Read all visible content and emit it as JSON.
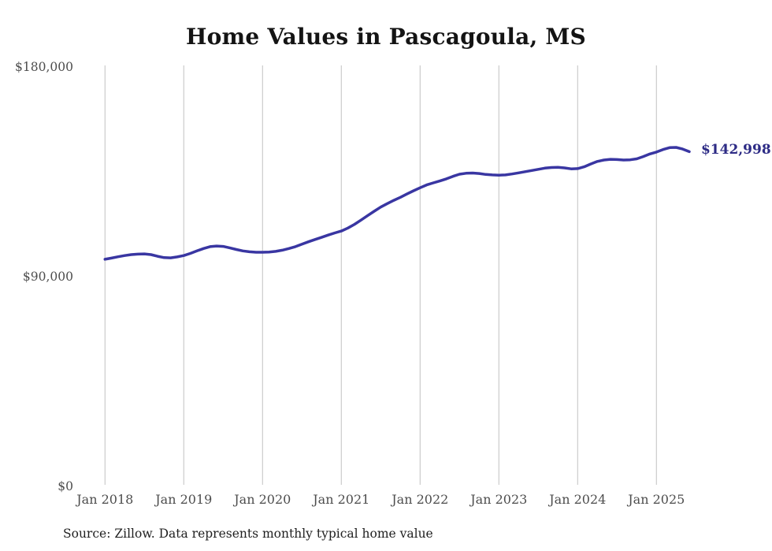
{
  "title": "Home Values in Pascagoula, MS",
  "source_note": "Source: Zillow. Data represents monthly typical home value",
  "colors": {
    "line": "#3936a2",
    "end_label": "#2d2b85",
    "gridline": "#cbcbcb",
    "axis_text": "#4d4d4d",
    "title_text": "#141414"
  },
  "chart_data": {
    "type": "line",
    "title": "Home Values in Pascagoula, MS",
    "series_name": "Monthly typical home value",
    "x_unit": "month",
    "months": [
      "2018-01",
      "2018-02",
      "2018-03",
      "2018-04",
      "2018-05",
      "2018-06",
      "2018-07",
      "2018-08",
      "2018-09",
      "2018-10",
      "2018-11",
      "2018-12",
      "2019-01",
      "2019-02",
      "2019-03",
      "2019-04",
      "2019-05",
      "2019-06",
      "2019-07",
      "2019-08",
      "2019-09",
      "2019-10",
      "2019-11",
      "2019-12",
      "2020-01",
      "2020-02",
      "2020-03",
      "2020-04",
      "2020-05",
      "2020-06",
      "2020-07",
      "2020-08",
      "2020-09",
      "2020-10",
      "2020-11",
      "2020-12",
      "2021-01",
      "2021-02",
      "2021-03",
      "2021-04",
      "2021-05",
      "2021-06",
      "2021-07",
      "2021-08",
      "2021-09",
      "2021-10",
      "2021-11",
      "2021-12",
      "2022-01",
      "2022-02",
      "2022-03",
      "2022-04",
      "2022-05",
      "2022-06",
      "2022-07",
      "2022-08",
      "2022-09",
      "2022-10",
      "2022-11",
      "2022-12",
      "2023-01",
      "2023-02",
      "2023-03",
      "2023-04",
      "2023-05",
      "2023-06",
      "2023-07",
      "2023-08",
      "2023-09",
      "2023-10",
      "2023-11",
      "2023-12",
      "2024-01",
      "2024-02",
      "2024-03",
      "2024-04",
      "2024-05",
      "2024-06",
      "2024-07",
      "2024-08",
      "2024-09",
      "2024-10",
      "2024-11",
      "2024-12",
      "2025-01",
      "2025-02",
      "2025-03",
      "2025-04",
      "2025-05",
      "2025-06"
    ],
    "values": [
      96800,
      97300,
      97900,
      98400,
      98800,
      99000,
      99100,
      98800,
      98100,
      97500,
      97400,
      97800,
      98400,
      99300,
      100400,
      101400,
      102200,
      102500,
      102300,
      101700,
      101000,
      100400,
      100000,
      99800,
      99800,
      99900,
      100200,
      100700,
      101400,
      102200,
      103300,
      104300,
      105300,
      106200,
      107200,
      108100,
      108900,
      110200,
      111800,
      113600,
      115500,
      117400,
      119200,
      120700,
      122100,
      123400,
      124800,
      126200,
      127500,
      128700,
      129600,
      130400,
      131300,
      132400,
      133300,
      133700,
      133800,
      133600,
      133200,
      133000,
      132900,
      133000,
      133400,
      133900,
      134400,
      134900,
      135400,
      135900,
      136200,
      136300,
      136000,
      135600,
      135700,
      136500,
      137700,
      138800,
      139400,
      139700,
      139600,
      139400,
      139500,
      139900,
      140900,
      142000,
      142800,
      143900,
      144700,
      144800,
      144100,
      142998
    ],
    "final_value": 142998,
    "end_label": "$142,998",
    "ylim": [
      0,
      180000
    ],
    "yticks": [
      {
        "value": 180000,
        "label": "$180,000"
      },
      {
        "value": 90000,
        "label": "$90,000"
      },
      {
        "value": 0,
        "label": "$0"
      }
    ],
    "xticks": [
      "Jan 2018",
      "Jan 2019",
      "Jan 2020",
      "Jan 2021",
      "Jan 2022",
      "Jan 2023",
      "Jan 2024",
      "Jan 2025"
    ],
    "grid": "vertical-only",
    "legend": "none"
  }
}
